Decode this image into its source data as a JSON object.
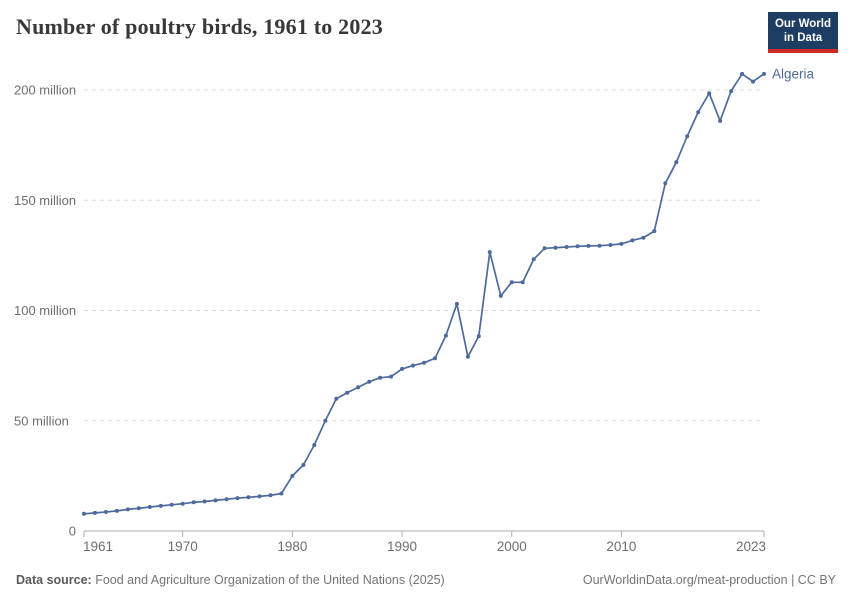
{
  "header": {
    "title": "Number of poultry birds, 1961 to 2023",
    "logo": {
      "line1": "Our World",
      "line2": "in Data"
    }
  },
  "chart_data": {
    "type": "line",
    "title": "Number of poultry birds, 1961 to 2023",
    "entity": "Algeria",
    "line_color": "#4c6a9c",
    "values_unit": "million birds",
    "xlim": [
      1961,
      2023
    ],
    "ylim": [
      0,
      200
    ],
    "grid": "dashed-horizontal",
    "x_ticks": [
      1961,
      1970,
      1980,
      1990,
      2000,
      2010,
      2023
    ],
    "y_ticks": [
      {
        "value": 0,
        "label": "0"
      },
      {
        "value": 50,
        "label": "50 million"
      },
      {
        "value": 100,
        "label": "100 million"
      },
      {
        "value": 150,
        "label": "150 million"
      },
      {
        "value": 200,
        "label": "200 million"
      }
    ],
    "years": [
      1961,
      1962,
      1963,
      1964,
      1965,
      1966,
      1967,
      1968,
      1969,
      1970,
      1971,
      1972,
      1973,
      1974,
      1975,
      1976,
      1977,
      1978,
      1979,
      1980,
      1981,
      1982,
      1983,
      1984,
      1985,
      1986,
      1987,
      1988,
      1989,
      1990,
      1991,
      1992,
      1993,
      1994,
      1995,
      1996,
      1997,
      1998,
      1999,
      2000,
      2001,
      2002,
      2003,
      2004,
      2005,
      2006,
      2007,
      2008,
      2009,
      2010,
      2011,
      2012,
      2013,
      2014,
      2015,
      2016,
      2017,
      2018,
      2019,
      2020,
      2021,
      2022,
      2023
    ],
    "values": [
      7.8,
      8.2,
      8.6,
      9.1,
      9.8,
      10.3,
      10.9,
      11.4,
      11.9,
      12.4,
      13.0,
      13.4,
      13.9,
      14.4,
      14.9,
      15.3,
      15.7,
      16.2,
      17.0,
      25.0,
      30.0,
      39.0,
      50.0,
      60.0,
      62.7,
      65.2,
      67.7,
      69.5,
      70.0,
      73.5,
      75.0,
      76.3,
      78.3,
      88.6,
      103.0,
      79.0,
      88.4,
      126.5,
      106.6,
      112.8,
      112.8,
      123.2,
      128.2,
      128.5,
      128.8,
      129.1,
      129.3,
      129.4,
      129.7,
      130.2,
      131.8,
      133.0,
      136.0,
      157.7,
      167.2,
      179.0,
      190.0,
      198.5,
      186.0,
      199.5,
      207.3,
      203.8,
      207.3
    ]
  },
  "footer": {
    "source_label": "Data source:",
    "source_text": " Food and Agriculture Organization of the United Nations (2025)",
    "link_text": "OurWorldinData.org/meat-production",
    "separator": " | ",
    "license_text": "CC BY"
  }
}
